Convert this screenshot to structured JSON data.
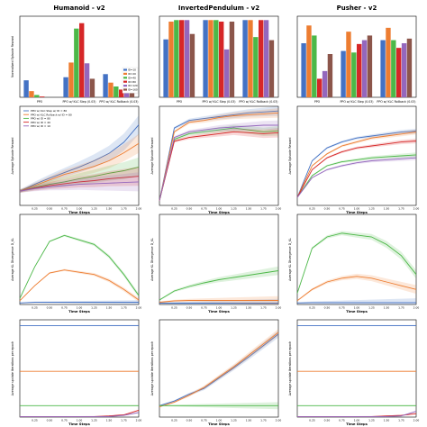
{
  "colors": {
    "s1": "#4472c4",
    "s2": "#ed7d31",
    "s3": "#4cb848",
    "s4": "#d62728",
    "s5": "#9467bd",
    "s6": "#8c564b"
  },
  "columns": [
    "Humanoid - v2",
    "InvertedPendulum - v2",
    "Pusher - v2"
  ],
  "chart_data": [
    {
      "type": "bar",
      "title": "Humanoid - v2",
      "ylabel": "Normalized Episode Reward",
      "ylim": [
        0,
        1.05
      ],
      "categories": [
        "PPO",
        "PPO w/ KLC Step (0.03)",
        "PPO w/ KLC Rollback (0.03)"
      ],
      "series": [
        {
          "name": "ID=10",
          "values": [
            0.22,
            0.26,
            0.3
          ]
        },
        {
          "name": "ID=20",
          "values": [
            0.08,
            0.45,
            0.19
          ]
        },
        {
          "name": "ID=40",
          "values": [
            0.03,
            0.89,
            0.14
          ]
        },
        {
          "name": "ID=80",
          "values": [
            0.01,
            0.96,
            0.1
          ]
        },
        {
          "name": "ID=120",
          "values": [
            0.0,
            0.44,
            0.22
          ]
        },
        {
          "name": "ID=160",
          "values": [
            0.0,
            0.24,
            0.17
          ]
        }
      ],
      "legend": [
        "ID=10",
        "ID=20",
        "ID=40",
        "ID=80",
        "ID=120",
        "ID=160"
      ]
    },
    {
      "type": "bar",
      "title": "InvertedPendulum - v2",
      "ylabel": "",
      "ylim": [
        0,
        1.05
      ],
      "categories": [
        "PPO",
        "PPO w/ KLC Step (0.03)",
        "PPO w/ KLC Rollback (0.03)"
      ],
      "series": [
        {
          "values": [
            0.75,
            1.0,
            1.0
          ]
        },
        {
          "values": [
            0.98,
            1.0,
            1.0
          ]
        },
        {
          "values": [
            1.0,
            1.0,
            0.78
          ]
        },
        {
          "values": [
            1.0,
            0.98,
            1.0
          ]
        },
        {
          "values": [
            1.0,
            0.62,
            1.0
          ]
        },
        {
          "values": [
            0.82,
            0.98,
            0.74
          ]
        }
      ]
    },
    {
      "type": "bar",
      "title": "Pusher - v2",
      "ylabel": "",
      "ylim": [
        0,
        1.05
      ],
      "categories": [
        "PPO",
        "PPO w/ KLC Step (0.03)",
        "PPO w/ KLC Rollback (0.03)"
      ],
      "series": [
        {
          "values": [
            0.7,
            0.6,
            0.74
          ]
        },
        {
          "values": [
            0.93,
            0.85,
            0.9
          ]
        },
        {
          "values": [
            0.8,
            0.58,
            0.74
          ]
        },
        {
          "values": [
            0.24,
            0.69,
            0.64
          ]
        },
        {
          "values": [
            0.34,
            0.74,
            0.7
          ]
        },
        {
          "values": [
            0.56,
            0.8,
            0.76
          ]
        }
      ]
    },
    {
      "type": "line",
      "xlabel": "Time Steps",
      "ylabel": "Average Episode Reward",
      "ylim": [
        -200,
        1400
      ],
      "xlim": [
        0,
        2000000
      ],
      "legend": [
        "PPO w/ KLC Step w/ ID = 80",
        "PPO w/ KLC Rollback w/ ID = 80",
        "PPO w/ ID = 80",
        "PPO w/ ID = 40",
        "PPO w/ ID = 10"
      ],
      "series": [
        {
          "name": "PPO w/ KLC Step w/ ID = 80",
          "x": [
            0,
            250000,
            500000,
            750000,
            1000000,
            1250000,
            1500000,
            1750000,
            2000000
          ],
          "y": [
            30,
            140,
            240,
            330,
            420,
            520,
            640,
            820,
            1100
          ]
        },
        {
          "name": "PPO w/ KLC Rollback w/ ID = 80",
          "x": [
            0,
            250000,
            500000,
            750000,
            1000000,
            1250000,
            1500000,
            1750000,
            2000000
          ],
          "y": [
            30,
            120,
            210,
            300,
            360,
            430,
            520,
            650,
            800
          ]
        },
        {
          "name": "PPO w/ ID = 80",
          "x": [
            0,
            250000,
            500000,
            750000,
            1000000,
            1250000,
            1500000,
            1750000,
            2000000
          ],
          "y": [
            30,
            90,
            140,
            180,
            230,
            270,
            320,
            360,
            420
          ]
        },
        {
          "name": "PPO w/ ID = 40",
          "x": [
            0,
            250000,
            500000,
            750000,
            1000000,
            1250000,
            1500000,
            1750000,
            2000000
          ],
          "y": [
            30,
            80,
            120,
            150,
            180,
            200,
            230,
            250,
            270
          ]
        },
        {
          "name": "PPO w/ ID = 10",
          "x": [
            0,
            250000,
            500000,
            750000,
            1000000,
            1250000,
            1500000,
            1750000,
            2000000
          ],
          "y": [
            30,
            70,
            100,
            120,
            140,
            150,
            160,
            170,
            180
          ]
        }
      ]
    },
    {
      "type": "line",
      "xlabel": "Time Steps",
      "ylabel": "Average Episode Reward",
      "ylim": [
        0,
        1050
      ],
      "xlim": [
        0,
        2000000
      ],
      "series": [
        {
          "x": [
            0,
            250000,
            500000,
            750000,
            1000000,
            1250000,
            1500000,
            1750000,
            2000000
          ],
          "y": [
            50,
            820,
            900,
            920,
            940,
            960,
            980,
            990,
            1000
          ]
        },
        {
          "x": [
            0,
            250000,
            500000,
            750000,
            1000000,
            1250000,
            1500000,
            1750000,
            2000000
          ],
          "y": [
            50,
            780,
            880,
            900,
            930,
            950,
            960,
            970,
            980
          ]
        },
        {
          "x": [
            0,
            250000,
            500000,
            750000,
            1000000,
            1250000,
            1500000,
            1750000,
            2000000
          ],
          "y": [
            50,
            700,
            760,
            780,
            800,
            820,
            800,
            780,
            790
          ]
        },
        {
          "x": [
            0,
            250000,
            500000,
            750000,
            1000000,
            1250000,
            1500000,
            1750000,
            2000000
          ],
          "y": [
            50,
            680,
            720,
            740,
            760,
            780,
            770,
            760,
            770
          ]
        },
        {
          "x": [
            0,
            250000,
            500000,
            750000,
            1000000,
            1250000,
            1500000,
            1750000,
            2000000
          ],
          "y": [
            50,
            720,
            780,
            800,
            820,
            830,
            840,
            850,
            850
          ]
        }
      ]
    },
    {
      "type": "line",
      "xlabel": "Time Steps",
      "ylabel": "Average Episode Reward",
      "ylim": [
        -140,
        -40
      ],
      "xlim": [
        0,
        2000000
      ],
      "series": [
        {
          "x": [
            0,
            250000,
            500000,
            750000,
            1000000,
            1250000,
            1500000,
            1750000,
            2000000
          ],
          "y": [
            -132,
            -95,
            -82,
            -76,
            -72,
            -70,
            -68,
            -66,
            -65
          ]
        },
        {
          "x": [
            0,
            250000,
            500000,
            750000,
            1000000,
            1250000,
            1500000,
            1750000,
            2000000
          ],
          "y": [
            -132,
            -100,
            -88,
            -80,
            -76,
            -72,
            -70,
            -68,
            -66
          ]
        },
        {
          "x": [
            0,
            250000,
            500000,
            750000,
            1000000,
            1250000,
            1500000,
            1750000,
            2000000
          ],
          "y": [
            -132,
            -110,
            -100,
            -96,
            -94,
            -92,
            -91,
            -90,
            -89
          ]
        },
        {
          "x": [
            0,
            250000,
            500000,
            750000,
            1000000,
            1250000,
            1500000,
            1750000,
            2000000
          ],
          "y": [
            -132,
            -104,
            -92,
            -86,
            -82,
            -80,
            -78,
            -76,
            -75
          ]
        },
        {
          "x": [
            0,
            250000,
            500000,
            750000,
            1000000,
            1250000,
            1500000,
            1750000,
            2000000
          ],
          "y": [
            -132,
            -112,
            -104,
            -100,
            -97,
            -95,
            -94,
            -93,
            -92
          ]
        }
      ]
    },
    {
      "type": "line",
      "xlabel": "Time Steps",
      "ylabel": "Average KL Divergence D_KL",
      "ylim": [
        0,
        12
      ],
      "xlim": [
        0,
        2000000
      ],
      "series": [
        {
          "x": [
            0,
            250000,
            500000,
            750000,
            1000000,
            1250000,
            1500000,
            1750000,
            2000000
          ],
          "y": [
            0.2,
            0.3,
            0.3,
            0.3,
            0.3,
            0.3,
            0.3,
            0.3,
            0.3
          ]
        },
        {
          "x": [
            0,
            250000,
            500000,
            750000,
            1000000,
            1250000,
            1500000,
            1750000,
            2000000
          ],
          "y": [
            0.5,
            2.5,
            4.2,
            4.6,
            4.3,
            4.0,
            3.2,
            2.0,
            0.6
          ]
        },
        {
          "x": [
            0,
            250000,
            500000,
            750000,
            1000000,
            1250000,
            1500000,
            1750000,
            2000000
          ],
          "y": [
            0.8,
            5.0,
            8.4,
            9.2,
            8.6,
            8.0,
            6.4,
            4.0,
            1.2
          ]
        }
      ]
    },
    {
      "type": "line",
      "xlabel": "Time Steps",
      "ylabel": "Average KL Divergence D_KL",
      "ylim": [
        0,
        20
      ],
      "xlim": [
        0,
        2000000
      ],
      "series": [
        {
          "x": [
            0,
            250000,
            500000,
            750000,
            1000000,
            1250000,
            1500000,
            1750000,
            2000000
          ],
          "y": [
            0.3,
            0.3,
            0.3,
            0.3,
            0.3,
            0.3,
            0.3,
            0.3,
            0.3
          ]
        },
        {
          "x": [
            0,
            250000,
            500000,
            750000,
            1000000,
            1250000,
            1500000,
            1750000,
            2000000
          ],
          "y": [
            0.5,
            0.8,
            0.9,
            0.9,
            0.9,
            0.9,
            0.9,
            0.9,
            0.9
          ]
        },
        {
          "x": [
            0,
            250000,
            500000,
            750000,
            1000000,
            1250000,
            1500000,
            1750000,
            2000000
          ],
          "y": [
            1.0,
            3.0,
            4.0,
            4.8,
            5.5,
            6.0,
            6.5,
            7.0,
            7.5
          ]
        }
      ]
    },
    {
      "type": "line",
      "xlabel": "Time Steps",
      "ylabel": "Average KL Divergence D_KL",
      "ylim": [
        0,
        2.4
      ],
      "xlim": [
        0,
        2000000
      ],
      "series": [
        {
          "x": [
            0,
            250000,
            500000,
            750000,
            1000000,
            1250000,
            1500000,
            1750000,
            2000000
          ],
          "y": [
            0.04,
            0.05,
            0.05,
            0.05,
            0.05,
            0.05,
            0.05,
            0.05,
            0.05
          ]
        },
        {
          "x": [
            0,
            250000,
            500000,
            750000,
            1000000,
            1250000,
            1500000,
            1750000,
            2000000
          ],
          "y": [
            0.1,
            0.4,
            0.6,
            0.7,
            0.75,
            0.7,
            0.6,
            0.5,
            0.4
          ]
        },
        {
          "x": [
            0,
            250000,
            500000,
            750000,
            1000000,
            1250000,
            1500000,
            1750000,
            2000000
          ],
          "y": [
            0.3,
            1.5,
            1.8,
            1.9,
            1.85,
            1.8,
            1.6,
            1.3,
            0.8
          ]
        }
      ]
    },
    {
      "type": "line",
      "xlabel": "Time Steps",
      "ylabel": "Average update iterations per epoch",
      "ylim": [
        0,
        170
      ],
      "xlim": [
        0,
        2000000
      ],
      "series": [
        {
          "x": [
            0,
            2000000
          ],
          "y": [
            160,
            160
          ]
        },
        {
          "x": [
            0,
            2000000
          ],
          "y": [
            80,
            80
          ]
        },
        {
          "x": [
            0,
            2000000
          ],
          "y": [
            20,
            20
          ]
        },
        {
          "x": [
            0,
            250000,
            500000,
            750000,
            1000000,
            1250000,
            1500000,
            1750000,
            2000000
          ],
          "y": [
            1,
            1,
            1,
            1,
            1,
            1,
            2,
            4,
            12
          ]
        },
        {
          "x": [
            0,
            250000,
            500000,
            750000,
            1000000,
            1250000,
            1500000,
            1750000,
            2000000
          ],
          "y": [
            1,
            1,
            1,
            1,
            1,
            1,
            1,
            3,
            8
          ]
        }
      ]
    },
    {
      "type": "line",
      "xlabel": "Time Steps",
      "ylabel": "Average update iterations per epoch",
      "ylim": [
        0,
        170
      ],
      "xlim": [
        0,
        2000000
      ],
      "series": [
        {
          "x": [
            0,
            250000,
            500000,
            750000,
            1000000,
            1250000,
            1500000,
            1750000,
            2000000
          ],
          "y": [
            20,
            28,
            40,
            50,
            68,
            86,
            105,
            125,
            145
          ]
        },
        {
          "x": [
            0,
            250000,
            500000,
            750000,
            1000000,
            1250000,
            1500000,
            1750000,
            2000000
          ],
          "y": [
            18,
            26,
            38,
            52,
            70,
            88,
            108,
            128,
            148
          ]
        },
        {
          "x": [
            0,
            2000000
          ],
          "y": [
            20,
            20
          ]
        }
      ]
    },
    {
      "type": "line",
      "xlabel": "Time Steps",
      "ylabel": "Average update iterations per epoch",
      "ylim": [
        0,
        170
      ],
      "xlim": [
        0,
        2000000
      ],
      "series": [
        {
          "x": [
            0,
            2000000
          ],
          "y": [
            160,
            160
          ]
        },
        {
          "x": [
            0,
            2000000
          ],
          "y": [
            80,
            80
          ]
        },
        {
          "x": [
            0,
            2000000
          ],
          "y": [
            20,
            20
          ]
        },
        {
          "x": [
            0,
            250000,
            500000,
            750000,
            1000000,
            1250000,
            1500000,
            1750000,
            2000000
          ],
          "y": [
            1,
            1,
            1,
            1,
            1,
            1,
            2,
            3,
            6
          ]
        },
        {
          "x": [
            0,
            250000,
            500000,
            750000,
            1000000,
            1250000,
            1500000,
            1750000,
            2000000
          ],
          "y": [
            1,
            1,
            1,
            1,
            1,
            1,
            1,
            2,
            10
          ]
        }
      ]
    }
  ]
}
